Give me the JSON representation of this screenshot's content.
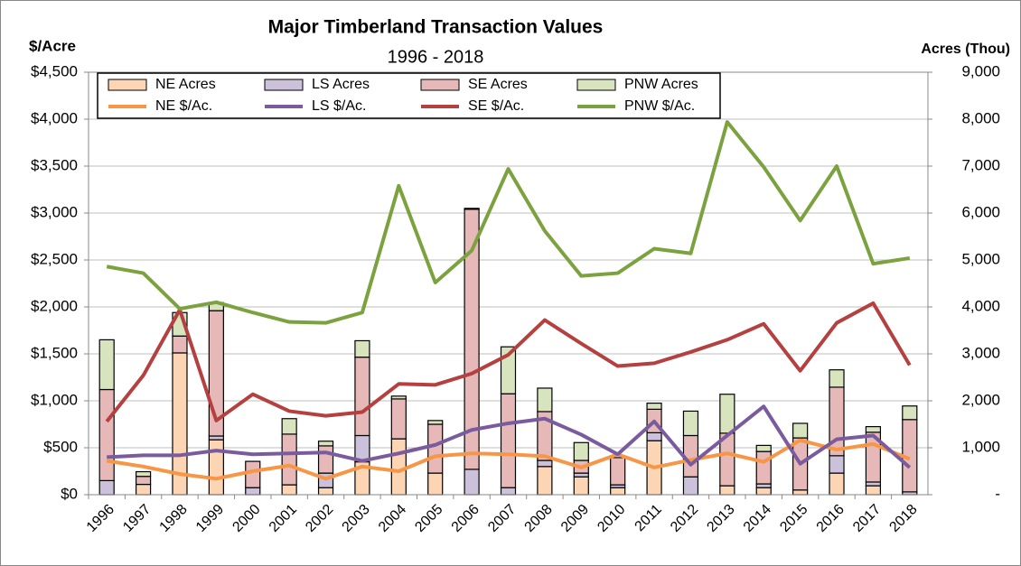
{
  "chart_data": {
    "type": "combo",
    "title": "Major Timberland Transaction Values",
    "subtitle": "1996 - 2018",
    "y_label": "$/Acre",
    "y2_label": "Acres (Thou)",
    "categories": [
      "1996",
      "1997",
      "1998",
      "1999",
      "2000",
      "2001",
      "2002",
      "2003",
      "2004",
      "2005",
      "2006",
      "2007",
      "2008",
      "2009",
      "2010",
      "2011",
      "2012",
      "2013",
      "2014",
      "2015",
      "2016",
      "2017",
      "2018"
    ],
    "ylim": [
      0,
      4500
    ],
    "yticks": [
      {
        "value": 0,
        "label": "$0"
      },
      {
        "value": 500,
        "label": "$500"
      },
      {
        "value": 1000,
        "label": "$1,000"
      },
      {
        "value": 1500,
        "label": "$1,500"
      },
      {
        "value": 2000,
        "label": "$2,000"
      },
      {
        "value": 2500,
        "label": "$2,500"
      },
      {
        "value": 3000,
        "label": "$3,000"
      },
      {
        "value": 3500,
        "label": "$3,500"
      },
      {
        "value": 4000,
        "label": "$4,000"
      },
      {
        "value": 4500,
        "label": "$4,500"
      }
    ],
    "y2lim": [
      0,
      9000
    ],
    "y2ticks": [
      {
        "value": 0,
        "label": "-"
      },
      {
        "value": 1000,
        "label": "1,000"
      },
      {
        "value": 2000,
        "label": "2,000"
      },
      {
        "value": 3000,
        "label": "3,000"
      },
      {
        "value": 4000,
        "label": "4,000"
      },
      {
        "value": 5000,
        "label": "5,000"
      },
      {
        "value": 6000,
        "label": "6,000"
      },
      {
        "value": 7000,
        "label": "7,000"
      },
      {
        "value": 8000,
        "label": "8,000"
      },
      {
        "value": 9000,
        "label": "9,000"
      }
    ],
    "grid": true,
    "legend": "top",
    "series": [
      {
        "name": "NE Acres",
        "type": "bar",
        "axis": "y2",
        "color": "#fcd5b5",
        "values": [
          0,
          220,
          3020,
          1170,
          0,
          210,
          150,
          700,
          1190,
          460,
          0,
          0,
          600,
          380,
          150,
          1150,
          0,
          190,
          150,
          100,
          460,
          190,
          0
        ]
      },
      {
        "name": "LS Acres",
        "type": "bar",
        "axis": "y2",
        "color": "#ccc1da",
        "values": [
          300,
          0,
          0,
          80,
          150,
          0,
          310,
          560,
          0,
          0,
          540,
          150,
          130,
          80,
          60,
          170,
          380,
          0,
          80,
          0,
          370,
          80,
          60
        ]
      },
      {
        "name": "SE Acres",
        "type": "bar",
        "axis": "y2",
        "color": "#e6b9b8",
        "values": [
          1940,
          170,
          360,
          2670,
          560,
          1080,
          580,
          1670,
          850,
          1040,
          5540,
          2000,
          1040,
          270,
          580,
          500,
          880,
          1120,
          690,
          1110,
          1460,
          1060,
          1540
        ]
      },
      {
        "name": "PNW Acres",
        "type": "bar",
        "axis": "y2",
        "color": "#d7e4bd",
        "values": [
          1060,
          100,
          500,
          170,
          0,
          330,
          100,
          350,
          60,
          80,
          20,
          1000,
          500,
          380,
          0,
          130,
          520,
          830,
          130,
          310,
          370,
          120,
          290
        ]
      },
      {
        "name": "NE $/Ac.",
        "type": "line",
        "color": "#f79646",
        "values": [
          360,
          300,
          220,
          170,
          250,
          310,
          170,
          300,
          250,
          410,
          440,
          430,
          410,
          290,
          430,
          290,
          370,
          440,
          350,
          580,
          480,
          540,
          380
        ]
      },
      {
        "name": "LS $/Ac.",
        "type": "line",
        "color": "#7a5c9e",
        "values": [
          400,
          420,
          420,
          470,
          430,
          440,
          450,
          360,
          440,
          530,
          690,
          760,
          810,
          640,
          430,
          780,
          320,
          630,
          940,
          330,
          590,
          630,
          290
        ]
      },
      {
        "name": "SE $/Ac.",
        "type": "line",
        "color": "#b54040",
        "values": [
          780,
          1270,
          1970,
          790,
          1070,
          890,
          840,
          880,
          1180,
          1170,
          1290,
          1490,
          1860,
          1610,
          1370,
          1400,
          1520,
          1650,
          1820,
          1320,
          1830,
          2040,
          1380
        ]
      },
      {
        "name": "PNW $/Ac.",
        "type": "line",
        "color": "#7ba23f",
        "values": [
          2430,
          2360,
          1980,
          2050,
          1940,
          1840,
          1830,
          1940,
          3290,
          2260,
          2600,
          3470,
          2810,
          2330,
          2360,
          2620,
          2570,
          3970,
          3490,
          2920,
          3500,
          2460,
          2520
        ]
      }
    ]
  }
}
